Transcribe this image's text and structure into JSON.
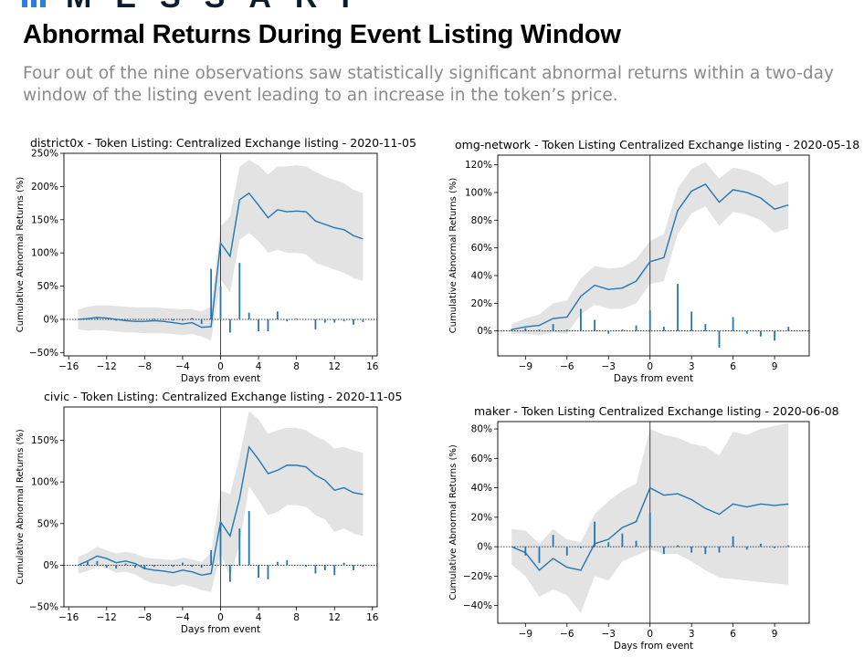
{
  "header": {
    "brand": "MESSARI",
    "title": "Abnormal Returns During Event Listing Window",
    "subtitle": "Four out of the nine observations saw statistically significant abnormal returns within a two-day window of the listing event leading to an increase in the token’s price.",
    "brand_colors": {
      "dark": "#0b1e2e",
      "accent": "#2f7fd8"
    }
  },
  "chart_data": [
    {
      "type": "line",
      "title": "district0x - Token Listing: Centralized Exchange listing - 2020-11-05",
      "xlabel": "Days from event",
      "ylabel": "Cumulative Abnormal Returns (%)",
      "xlim": [
        -16.5,
        16.5
      ],
      "ylim": [
        -55,
        250
      ],
      "xticks": [
        -16,
        -12,
        -8,
        -4,
        0,
        4,
        8,
        12,
        16
      ],
      "yticks": [
        -50,
        0,
        50,
        100,
        150,
        200,
        250
      ],
      "event_x": 0,
      "colors": {
        "line": "#1f77b4",
        "band": "#e3e3e3"
      },
      "x": [
        -15,
        -14,
        -13,
        -12,
        -11,
        -10,
        -9,
        -8,
        -7,
        -6,
        -5,
        -4,
        -3,
        -2,
        -1,
        0,
        1,
        2,
        3,
        4,
        5,
        6,
        7,
        8,
        9,
        10,
        11,
        12,
        13,
        14,
        15
      ],
      "series": [
        {
          "values": [
            0,
            1,
            3,
            2,
            0,
            -2,
            -3,
            -3,
            -2,
            -3,
            -5,
            -7,
            -5,
            -12,
            -11,
            115,
            95,
            180,
            190,
            172,
            153,
            165,
            162,
            163,
            162,
            148,
            143,
            138,
            135,
            126,
            121
          ]
        }
      ],
      "band_upper": [
        15,
        19,
        21,
        21,
        20,
        19,
        18,
        18,
        18,
        17,
        16,
        15,
        15,
        12,
        19,
        140,
        155,
        230,
        240,
        232,
        218,
        230,
        230,
        232,
        230,
        222,
        215,
        210,
        205,
        195,
        190
      ],
      "band_lower": [
        -15,
        -17,
        -16,
        -17,
        -18,
        -20,
        -20,
        -21,
        -21,
        -21,
        -22,
        -24,
        -22,
        -26,
        -32,
        60,
        40,
        120,
        130,
        118,
        100,
        105,
        100,
        100,
        98,
        85,
        80,
        75,
        70,
        62,
        58
      ],
      "daily_returns": [
        0,
        1,
        3,
        0,
        -2,
        -1,
        -1,
        0,
        1,
        -1,
        -2,
        -2,
        2,
        -7,
        76,
        50,
        -20,
        85,
        10,
        -18,
        -18,
        12,
        -3,
        1,
        0,
        -15,
        -5,
        -5,
        -3,
        -8,
        -4
      ]
    },
    {
      "type": "line",
      "title": "omg-network - Token Listing Centralized Exchange listing - 2020-05-18",
      "xlabel": "Days from event",
      "ylabel": "Cumulative Abnormal Returns (%)",
      "xlim": [
        -11,
        11.5
      ],
      "ylim": [
        -18,
        127
      ],
      "xticks": [
        -9,
        -6,
        -3,
        0,
        3,
        6,
        9
      ],
      "yticks": [
        0,
        20,
        40,
        60,
        80,
        100,
        120
      ],
      "event_x": 0,
      "colors": {
        "line": "#1f77b4",
        "band": "#e3e3e3"
      },
      "x": [
        -10,
        -9,
        -8,
        -7,
        -6,
        -5,
        -4,
        -3,
        -2,
        -1,
        0,
        1,
        2,
        3,
        4,
        5,
        6,
        7,
        8,
        9,
        10
      ],
      "series": [
        {
          "values": [
            1,
            3,
            4,
            9,
            10,
            25,
            33,
            30,
            31,
            36,
            50,
            53,
            87,
            101,
            106,
            93,
            102,
            100,
            96,
            88,
            91
          ]
        }
      ],
      "band_upper": [
        5,
        9,
        12,
        20,
        22,
        38,
        47,
        45,
        46,
        52,
        65,
        70,
        103,
        117,
        122,
        110,
        118,
        116,
        112,
        105,
        108
      ],
      "band_lower": [
        -2,
        -2,
        -3,
        -1,
        -2,
        12,
        19,
        16,
        16,
        20,
        34,
        36,
        70,
        85,
        90,
        76,
        86,
        84,
        80,
        71,
        74
      ],
      "daily_returns": [
        1,
        2,
        1,
        5,
        1,
        16,
        8,
        -2,
        1,
        4,
        15,
        3,
        34,
        14,
        5,
        -12,
        10,
        -2,
        -4,
        -7,
        3
      ]
    },
    {
      "type": "line",
      "title": "civic - Token Listing: Centralized Exchange listing - 2020-11-05",
      "xlabel": "Days from event",
      "ylabel": "Cumulative Abnormal Returns (%)",
      "xlim": [
        -16.5,
        16.5
      ],
      "ylim": [
        -50,
        190
      ],
      "xticks": [
        -16,
        -12,
        -8,
        -4,
        0,
        4,
        8,
        12,
        16
      ],
      "yticks": [
        -50,
        0,
        50,
        100,
        150
      ],
      "event_x": 0,
      "colors": {
        "line": "#1f77b4",
        "band": "#e3e3e3"
      },
      "x": [
        -15,
        -14,
        -13,
        -12,
        -11,
        -10,
        -9,
        -8,
        -7,
        -6,
        -5,
        -4,
        -3,
        -2,
        -1,
        0,
        1,
        2,
        3,
        4,
        5,
        6,
        7,
        8,
        9,
        10,
        11,
        12,
        13,
        14,
        15
      ],
      "series": [
        {
          "values": [
            0,
            5,
            11,
            8,
            3,
            5,
            2,
            -4,
            -6,
            -7,
            -9,
            -6,
            -8,
            -12,
            -10,
            52,
            35,
            80,
            142,
            127,
            110,
            114,
            120,
            120,
            118,
            108,
            102,
            90,
            93,
            87,
            85
          ]
        }
      ],
      "band_upper": [
        10,
        15,
        22,
        18,
        14,
        16,
        14,
        9,
        8,
        7,
        6,
        9,
        7,
        4,
        15,
        90,
        85,
        130,
        185,
        175,
        158,
        162,
        165,
        165,
        162,
        155,
        150,
        140,
        142,
        138,
        135
      ],
      "band_lower": [
        -10,
        -7,
        -2,
        -4,
        -9,
        -8,
        -11,
        -18,
        -22,
        -23,
        -26,
        -23,
        -26,
        -30,
        -32,
        15,
        -15,
        25,
        95,
        78,
        60,
        64,
        72,
        72,
        70,
        60,
        55,
        40,
        44,
        38,
        35
      ],
      "daily_returns": [
        0,
        4,
        5,
        -3,
        -4,
        2,
        -3,
        -5,
        -2,
        -1,
        -2,
        3,
        -2,
        -3,
        18,
        52,
        -20,
        44,
        65,
        -15,
        -17,
        4,
        6,
        0,
        -2,
        -10,
        -6,
        -12,
        3,
        -6,
        -2
      ]
    },
    {
      "type": "line",
      "title": "maker - Token Listing Centralized Exchange listing - 2020-06-08",
      "xlabel": "Days from event",
      "ylabel": "Cumulative Abnormal Returns (%)",
      "xlim": [
        -11,
        11.5
      ],
      "ylim": [
        -52,
        85
      ],
      "xticks": [
        -9,
        -6,
        -3,
        0,
        3,
        6,
        9
      ],
      "yticks": [
        -40,
        -20,
        0,
        20,
        40,
        60,
        80
      ],
      "event_x": 0,
      "colors": {
        "line": "#1f77b4",
        "band": "#e3e3e3"
      },
      "x": [
        -10,
        -9,
        -8,
        -7,
        -6,
        -5,
        -4,
        -3,
        -2,
        -1,
        0,
        1,
        2,
        3,
        4,
        5,
        6,
        7,
        8,
        9,
        10
      ],
      "series": [
        {
          "values": [
            0,
            -4,
            -16,
            -8,
            -14,
            -16,
            2,
            5,
            13,
            17,
            40,
            35,
            36,
            32,
            26,
            22,
            29,
            27,
            29,
            28,
            29
          ]
        }
      ],
      "band_upper": [
        12,
        11,
        2,
        12,
        5,
        3,
        22,
        31,
        38,
        43,
        80,
        76,
        74,
        70,
        68,
        62,
        78,
        76,
        80,
        82,
        84
      ],
      "band_lower": [
        -12,
        -20,
        -34,
        -29,
        -33,
        -45,
        -20,
        -23,
        -10,
        -6,
        -2,
        -5,
        -5,
        -10,
        -16,
        -21,
        -22,
        -23,
        -24,
        -25,
        -26
      ],
      "daily_returns": [
        0,
        -6,
        -11,
        8,
        -6,
        -1,
        17,
        3,
        9,
        4,
        23,
        -5,
        1,
        -4,
        -5,
        -4,
        7,
        -2,
        2,
        -1,
        1
      ]
    }
  ]
}
